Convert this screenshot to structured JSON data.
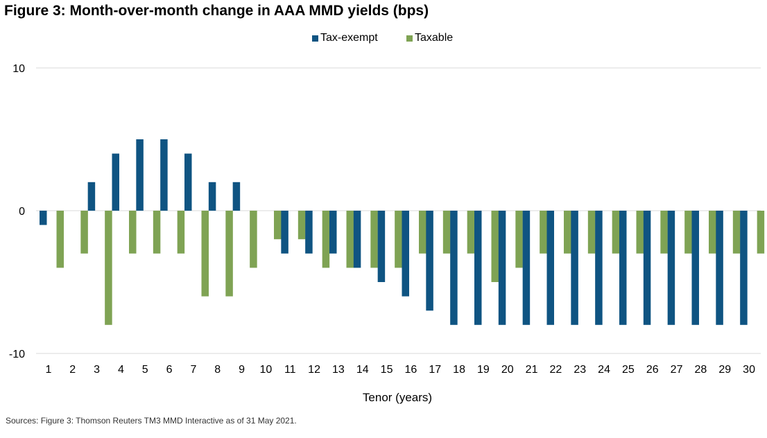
{
  "chart_data": {
    "type": "bar",
    "title": "Figure 3: Month-over-month change in AAA MMD yields (bps)",
    "xlabel": "Tenor (years)",
    "ylabel": "",
    "categories": [
      "1",
      "2",
      "3",
      "4",
      "5",
      "6",
      "7",
      "8",
      "9",
      "10",
      "11",
      "12",
      "13",
      "14",
      "15",
      "16",
      "17",
      "18",
      "19",
      "20",
      "21",
      "22",
      "23",
      "24",
      "25",
      "26",
      "27",
      "28",
      "29",
      "30"
    ],
    "series": [
      {
        "name": "Tax-exempt",
        "color": "#0F5482",
        "values": [
          -1,
          0,
          2,
          4,
          5,
          5,
          4,
          2,
          2,
          0,
          -3,
          -3,
          -3,
          -4,
          -5,
          -6,
          -7,
          -8,
          -8,
          -8,
          -8,
          -8,
          -8,
          -8,
          -8,
          -8,
          -8,
          -8,
          -8,
          -8
        ]
      },
      {
        "name": "Taxable",
        "color": "#7FA354",
        "values": [
          -4,
          -3,
          -8,
          -3,
          -3,
          -3,
          -6,
          -6,
          -4,
          -2,
          -2,
          -4,
          -4,
          -4,
          -4,
          -3,
          -3,
          -3,
          -5,
          -4,
          -3,
          -3,
          -3,
          -3,
          -3,
          -3,
          -3,
          -3,
          -3,
          -3
        ]
      }
    ],
    "ylim": [
      -10,
      10
    ],
    "yticks": [
      "10",
      "0",
      "-10"
    ],
    "grid": true,
    "legend_position": "top-center",
    "source": "Sources: Figure 3: Thomson Reuters TM3 MMD Interactive as of 31 May 2021."
  }
}
